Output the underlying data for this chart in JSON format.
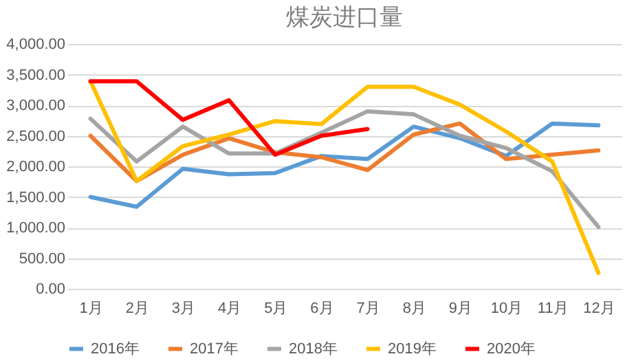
{
  "chart_data": {
    "type": "line",
    "title": "煤炭进口量",
    "categories": [
      "1月",
      "2月",
      "3月",
      "4月",
      "5月",
      "6月",
      "7月",
      "8月",
      "9月",
      "10月",
      "11月",
      "12月"
    ],
    "series": [
      {
        "name": "2016年",
        "color": "#5b9bd5",
        "values": [
          1500,
          1340,
          1960,
          1870,
          1890,
          2170,
          2120,
          2650,
          2460,
          2170,
          2700,
          2670
        ]
      },
      {
        "name": "2017年",
        "color": "#ed7d31",
        "values": [
          2500,
          1760,
          2190,
          2460,
          2230,
          2150,
          1940,
          2520,
          2700,
          2120,
          2190,
          2260
        ]
      },
      {
        "name": "2018年",
        "color": "#a5a5a5",
        "values": [
          2780,
          2080,
          2650,
          2210,
          2210,
          2550,
          2900,
          2850,
          2500,
          2300,
          1920,
          1010
        ]
      },
      {
        "name": "2019年",
        "color": "#ffc000",
        "values": [
          3390,
          1760,
          2330,
          2520,
          2740,
          2690,
          3300,
          3300,
          3010,
          2570,
          2080,
          260
        ]
      },
      {
        "name": "2020年",
        "color": "#ff0000",
        "values": [
          3390,
          3390,
          2760,
          3080,
          2190,
          2500,
          2610,
          null,
          null,
          null,
          null,
          null
        ]
      }
    ],
    "ylim": [
      0,
      4000
    ],
    "yticks": [
      {
        "value": 0,
        "label": "0.00"
      },
      {
        "value": 500,
        "label": "500.00"
      },
      {
        "value": 1000,
        "label": "1,000.00"
      },
      {
        "value": 1500,
        "label": "1,500.00"
      },
      {
        "value": 2000,
        "label": "2,000.00"
      },
      {
        "value": 2500,
        "label": "2,500.00"
      },
      {
        "value": 3000,
        "label": "3,000.00"
      },
      {
        "value": 3500,
        "label": "3,500.00"
      },
      {
        "value": 4000,
        "label": "4,000.00"
      }
    ],
    "grid": "y",
    "legend": "bottom",
    "line_style": "solid",
    "marker": "none"
  }
}
